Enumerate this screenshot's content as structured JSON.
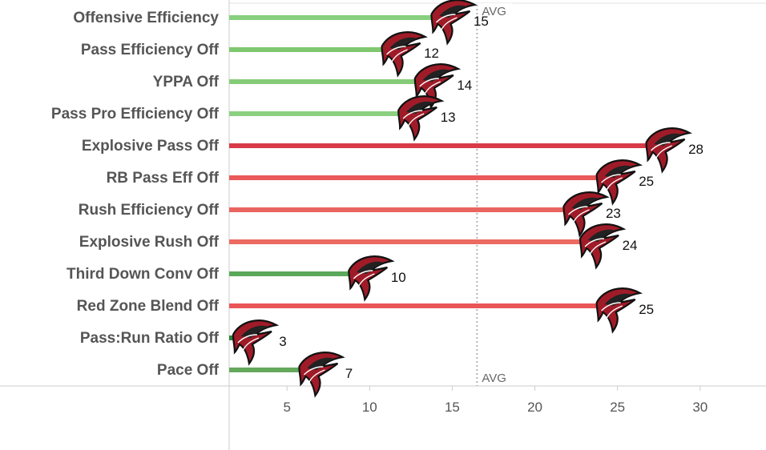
{
  "chart_data": {
    "type": "bar",
    "orientation": "horizontal",
    "categories": [
      "Offensive Efficiency",
      "Pass Efficiency Off",
      "YPPA Off",
      "Pass Pro Efficiency Off",
      "Explosive Pass Off",
      "RB Pass Eff Off",
      "Rush Efficiency Off",
      "Explosive Rush Off",
      "Third Down Conv Off",
      "Red Zone Blend Off",
      "Pass:Run Ratio Off",
      "Pace Off"
    ],
    "values": [
      15,
      12,
      14,
      13,
      28,
      25,
      23,
      24,
      10,
      25,
      3,
      7
    ],
    "bar_colors": [
      "#88d07f",
      "#7fc86f",
      "#86cc78",
      "#8bd080",
      "#d93a48",
      "#ea5a5a",
      "#ea6560",
      "#ec6a62",
      "#5aa85a",
      "#ea5558",
      "#2f7f3a",
      "#64a85c"
    ],
    "x_ticks": [
      5,
      10,
      15,
      20,
      25,
      30
    ],
    "xlim": [
      1.5,
      33.5
    ],
    "reference_line": {
      "label": "AVG",
      "value": 16.5
    },
    "marker_icon": "falcons-logo-icon",
    "grid": false,
    "title": "",
    "xlabel": "",
    "ylabel": ""
  }
}
